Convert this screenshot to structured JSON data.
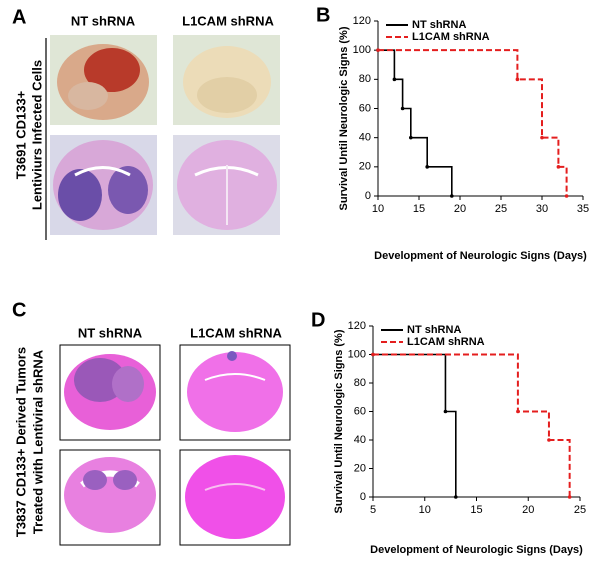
{
  "panels": {
    "A": {
      "letter": "A",
      "columns": [
        "NT shRNA",
        "L1CAM  shRNA"
      ],
      "row_label": [
        "T3691 CD133+",
        "Lentiviurs Infected Cells"
      ]
    },
    "C": {
      "letter": "C",
      "columns": [
        "NT shRNA",
        "L1CAM  shRNA"
      ],
      "row_label": [
        "T3837 CD133+ Derived Tumors",
        "Treated with Lentiviral shRNA"
      ]
    }
  },
  "chart_data": [
    {
      "type": "line",
      "step": true,
      "panel": "B",
      "xlabel": "Development of Neurologic Signs (Days)",
      "ylabel": "Survival Until Neurologic Signs (%)",
      "xlim": [
        10,
        35
      ],
      "xticks": [
        10,
        15,
        20,
        25,
        30,
        35
      ],
      "ylim": [
        0,
        120
      ],
      "yticks": [
        0,
        20,
        40,
        60,
        80,
        100,
        120
      ],
      "legend": "upper left",
      "series": [
        {
          "name": "NT shRNA",
          "color": "#000000",
          "linestyle": "solid",
          "x": [
            10,
            12,
            13,
            14,
            16,
            19
          ],
          "values": [
            100,
            80,
            60,
            40,
            20,
            0
          ]
        },
        {
          "name": "L1CAM shRNA",
          "color": "#e41e1e",
          "linestyle": "dashed",
          "x": [
            10,
            27,
            30,
            32,
            33
          ],
          "values": [
            100,
            80,
            40,
            20,
            0
          ]
        }
      ]
    },
    {
      "type": "line",
      "step": true,
      "panel": "D",
      "xlabel": "Development of Neurologic Signs (Days)",
      "ylabel": "Survival Until Neurologic Signs (%)",
      "xlim": [
        5,
        25
      ],
      "xticks": [
        5,
        10,
        15,
        20,
        25
      ],
      "ylim": [
        0,
        120
      ],
      "yticks": [
        0,
        20,
        40,
        60,
        80,
        100,
        120
      ],
      "legend": "upper left",
      "series": [
        {
          "name": "NT shRNA",
          "color": "#000000",
          "linestyle": "solid",
          "x": [
            5,
            12,
            13
          ],
          "values": [
            100,
            60,
            0
          ]
        },
        {
          "name": "L1CAM shRNA",
          "color": "#e41e1e",
          "linestyle": "dashed",
          "x": [
            5,
            19,
            22,
            24
          ],
          "values": [
            100,
            60,
            40,
            0
          ]
        }
      ]
    }
  ]
}
